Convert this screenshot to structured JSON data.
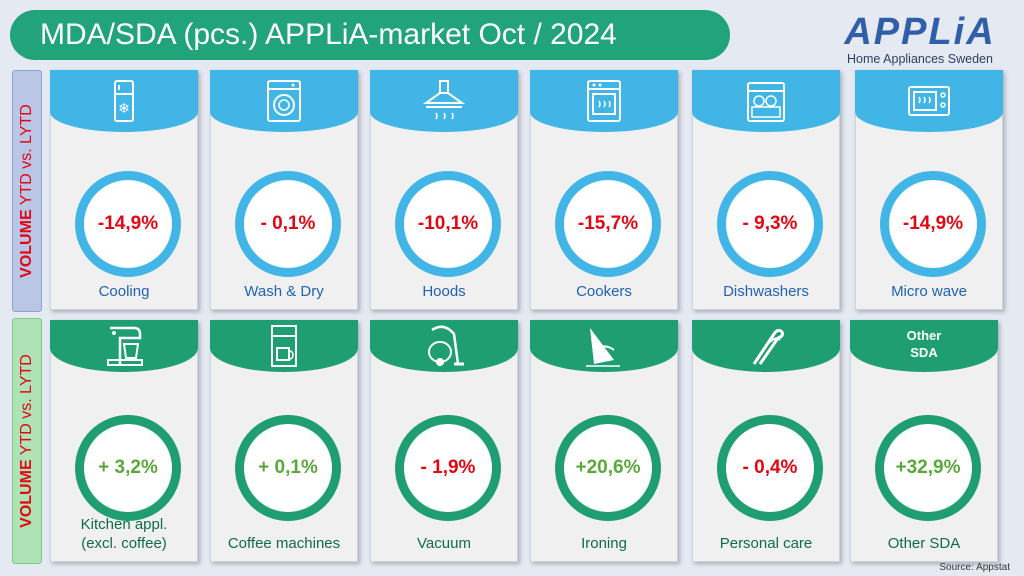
{
  "title": "MDA/SDA (pcs.)  APPLiA-market Oct / 2024",
  "logo": {
    "word": "APPLiA",
    "subtitle": "Home Appliances Sweden"
  },
  "side_labels": {
    "top": {
      "bold": "VOLUME",
      "rest": " YTD vs. LYTD"
    },
    "bottom": {
      "bold": "VOLUME",
      "rest": " YTD vs. LYTD"
    }
  },
  "mda": [
    {
      "icon": "fridge-icon",
      "value": "-14,9%",
      "sign": "neg",
      "label": "Cooling"
    },
    {
      "icon": "washing-machine-icon",
      "value": "- 0,1%",
      "sign": "neg",
      "label": "Wash & Dry"
    },
    {
      "icon": "cooker-hood-icon",
      "value": "-10,1%",
      "sign": "neg",
      "label": "Hoods"
    },
    {
      "icon": "oven-icon",
      "value": "-15,7%",
      "sign": "neg",
      "label": "Cookers"
    },
    {
      "icon": "dishwasher-icon",
      "value": "- 9,3%",
      "sign": "neg",
      "label": "Dishwashers"
    },
    {
      "icon": "microwave-icon",
      "value": "-14,9%",
      "sign": "neg",
      "label": "Micro wave"
    }
  ],
  "sda": [
    {
      "icon": "stand-mixer-icon",
      "value": "+ 3,2%",
      "sign": "pos",
      "label": "Kitchen appl. (excl. coffee)"
    },
    {
      "icon": "coffee-machine-icon",
      "value": "+ 0,1%",
      "sign": "pos",
      "label": "Coffee machines"
    },
    {
      "icon": "vacuum-cleaner-icon",
      "value": "- 1,9%",
      "sign": "neg",
      "label": "Vacuum"
    },
    {
      "icon": "iron-icon",
      "value": "+20,6%",
      "sign": "pos",
      "label": "Ironing"
    },
    {
      "icon": "hair-straightener-icon",
      "value": "- 0,4%",
      "sign": "neg",
      "label": "Personal care"
    },
    {
      "icon": "other-sda-text",
      "head_text": "Other SDA",
      "value": "+32,9%",
      "sign": "pos",
      "label": "Other SDA"
    }
  ],
  "source": "Source: Appstat",
  "colors": {
    "mda_blue": "#41b6e6",
    "sda_green": "#1f9e72",
    "negative": "#e30613",
    "positive": "#5aa83a",
    "title_bg": "#22a47a"
  }
}
